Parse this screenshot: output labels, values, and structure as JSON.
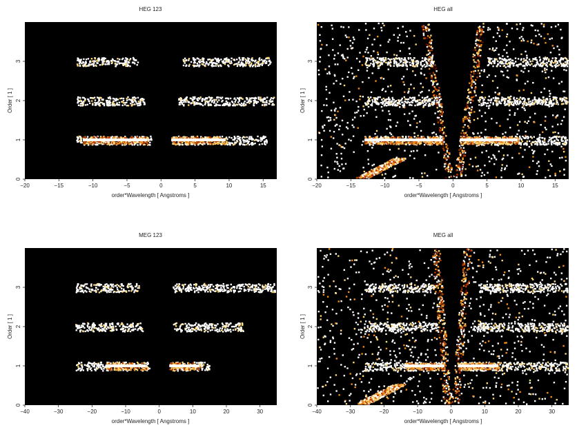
{
  "figure": {
    "background": "#ffffff",
    "plot_background": "#000000"
  },
  "chart_data": [
    {
      "type": "heatmap",
      "title": "HEG 123",
      "xlabel": "order*Wavelength [ Angstroms ]",
      "ylabel": "Order [ 1 ]",
      "xlim": [
        -20,
        17
      ],
      "ylim": [
        0,
        4
      ],
      "xticks": [
        -20,
        -15,
        -10,
        -5,
        0,
        5,
        10,
        15
      ],
      "yticks": [
        0,
        1,
        2,
        3
      ],
      "colormap": [
        "#000000",
        "#5a0c00",
        "#b33b00",
        "#f08c1a",
        "#ffd773",
        "#ffffff"
      ],
      "bands": [
        {
          "order": 1,
          "ranges": [
            [
              -12.5,
              -1.5
            ],
            [
              1.5,
              15.5
            ]
          ],
          "core": [
            [
              -11.5,
              -2.0
            ],
            [
              1.5,
              9.5
            ]
          ]
        },
        {
          "order": 2,
          "ranges": [
            [
              -12.5,
              -2.5
            ],
            [
              2.5,
              16.5
            ]
          ]
        },
        {
          "order": 3,
          "ranges": [
            [
              -12.5,
              -3.5
            ],
            [
              3.0,
              16.0
            ]
          ]
        }
      ],
      "background_noise": false
    },
    {
      "type": "heatmap",
      "title": "HEG all",
      "xlabel": "order*Wavelength [ Angstroms ]",
      "ylabel": "Order [ 1 ]",
      "xlim": [
        -20,
        17
      ],
      "ylim": [
        0,
        4
      ],
      "xticks": [
        -20,
        -15,
        -10,
        -5,
        0,
        5,
        10,
        15
      ],
      "yticks": [
        0,
        1,
        2,
        3
      ],
      "colormap": [
        "#000000",
        "#5a0c00",
        "#b33b00",
        "#f08c1a",
        "#ffd773",
        "#ffffff"
      ],
      "bands": [
        {
          "order": 1,
          "ranges": [
            [
              -13,
              -1.5
            ],
            [
              1.0,
              17
            ]
          ],
          "core": [
            [
              -13,
              -1.5
            ],
            [
              1.0,
              9.5
            ]
          ]
        },
        {
          "order": 2,
          "ranges": [
            [
              -13,
              -2.0
            ],
            [
              3.5,
              17
            ]
          ]
        },
        {
          "order": 3,
          "ranges": [
            [
              -13,
              -3.0
            ],
            [
              5.0,
              17
            ]
          ]
        }
      ],
      "background_noise": true
    },
    {
      "type": "heatmap",
      "title": "MEG 123",
      "xlabel": "order*Wavelength [ Angstroms ]",
      "ylabel": "Order [ 1 ]",
      "xlim": [
        -40,
        35
      ],
      "ylim": [
        0,
        4
      ],
      "xticks": [
        -40,
        -30,
        -20,
        -10,
        0,
        10,
        20,
        30
      ],
      "yticks": [
        0,
        1,
        2,
        3
      ],
      "colormap": [
        "#000000",
        "#5a0c00",
        "#b33b00",
        "#f08c1a",
        "#ffd773",
        "#ffffff"
      ],
      "bands": [
        {
          "order": 1,
          "ranges": [
            [
              -25,
              -3
            ],
            [
              3,
              15
            ]
          ],
          "core": [
            [
              -16,
              -4
            ],
            [
              3,
              12
            ]
          ]
        },
        {
          "order": 2,
          "ranges": [
            [
              -25,
              -5
            ],
            [
              4,
              25
            ]
          ]
        },
        {
          "order": 3,
          "ranges": [
            [
              -25,
              -6
            ],
            [
              4,
              35
            ]
          ]
        }
      ],
      "background_noise": false
    },
    {
      "type": "heatmap",
      "title": "MEG all",
      "xlabel": "order*Wavelength [ Angstroms ]",
      "ylabel": "Order [ 1 ]",
      "xlim": [
        -40,
        35
      ],
      "ylim": [
        0,
        4
      ],
      "xticks": [
        -40,
        -30,
        -20,
        -10,
        0,
        10,
        20,
        30
      ],
      "yticks": [
        0,
        1,
        2,
        3
      ],
      "colormap": [
        "#000000",
        "#5a0c00",
        "#b33b00",
        "#f08c1a",
        "#ffd773",
        "#ffffff"
      ],
      "bands": [
        {
          "order": 1,
          "ranges": [
            [
              -26,
              -2
            ],
            [
              2,
              35
            ]
          ],
          "core": [
            [
              -14,
              -2
            ],
            [
              2,
              14
            ]
          ]
        },
        {
          "order": 2,
          "ranges": [
            [
              -26,
              -4
            ],
            [
              6,
              35
            ]
          ]
        },
        {
          "order": 3,
          "ranges": [
            [
              -26,
              -5
            ],
            [
              8,
              35
            ]
          ]
        }
      ],
      "background_noise": true
    }
  ]
}
